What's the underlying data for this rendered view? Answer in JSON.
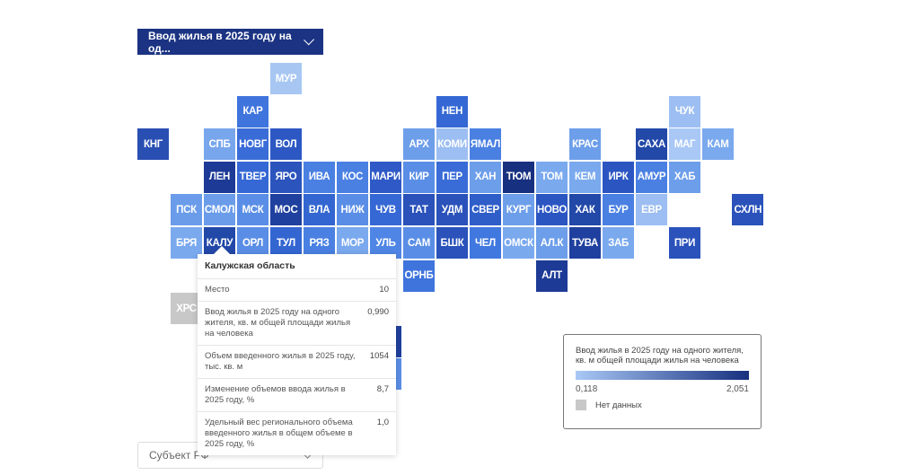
{
  "indicator_dropdown": {
    "label": "Ввод жилья в 2025 году на од...",
    "icon": "chevron-down-icon"
  },
  "subject_dropdown": {
    "placeholder": "Субъект РФ",
    "icon": "chevron-down-icon"
  },
  "chart_data": {
    "type": "heatmap",
    "title": "",
    "scale": {
      "min": 0.118,
      "max": 2.051,
      "color_low": "#a9c8f5",
      "color_high": "#17307f",
      "no_data_color": "#c8c8c8"
    },
    "regions": [
      {
        "abbr": "МУР",
        "color": "#a7c6f2"
      },
      {
        "abbr": "КАР",
        "color": "#3f74dd"
      },
      {
        "abbr": "НЕН",
        "color": "#3568d4"
      },
      {
        "abbr": "ЧУК",
        "color": "#9cbef2"
      },
      {
        "abbr": "КНГ",
        "color": "#2a4fb3"
      },
      {
        "abbr": "СПБ",
        "color": "#78a6ec"
      },
      {
        "abbr": "НОВГ",
        "color": "#3a6cd8"
      },
      {
        "abbr": "ВОЛ",
        "color": "#2d58c4"
      },
      {
        "abbr": "АРХ",
        "color": "#6d9eea"
      },
      {
        "abbr": "КОМИ",
        "color": "#9cbef2"
      },
      {
        "abbr": "ЯМАЛ",
        "color": "#4a80e2"
      },
      {
        "abbr": "КРАС",
        "color": "#6d9eea"
      },
      {
        "abbr": "САХА",
        "color": "#2248a8"
      },
      {
        "abbr": "МАГ",
        "color": "#a9c8f5"
      },
      {
        "abbr": "КАМ",
        "color": "#7aa9ee"
      },
      {
        "abbr": "ЛЕН",
        "color": "#1d3a96"
      },
      {
        "abbr": "ТВЕР",
        "color": "#3568d4"
      },
      {
        "abbr": "ЯРО",
        "color": "#2c54bd"
      },
      {
        "abbr": "ИВА",
        "color": "#4a80e2"
      },
      {
        "abbr": "КОС",
        "color": "#4a80e2"
      },
      {
        "abbr": "МАРИ",
        "color": "#2e59c6"
      },
      {
        "abbr": "КИР",
        "color": "#5a8ee6"
      },
      {
        "abbr": "ПЕР",
        "color": "#3a6cd8"
      },
      {
        "abbr": "ХАН",
        "color": "#6d9eea"
      },
      {
        "abbr": "ТЮМ",
        "color": "#17307f"
      },
      {
        "abbr": "ТОМ",
        "color": "#7aa9ee"
      },
      {
        "abbr": "КЕМ",
        "color": "#7aa9ee"
      },
      {
        "abbr": "ИРК",
        "color": "#2b56c2"
      },
      {
        "abbr": "АМУР",
        "color": "#4a80e2"
      },
      {
        "abbr": "ХАБ",
        "color": "#6d9eea"
      },
      {
        "abbr": "ПСК",
        "color": "#6a9cea"
      },
      {
        "abbr": "СМОЛ",
        "color": "#6a9cea"
      },
      {
        "abbr": "МСК",
        "color": "#5a8ee6"
      },
      {
        "abbr": "МОС",
        "color": "#1f409e"
      },
      {
        "abbr": "ВЛА",
        "color": "#3366d0"
      },
      {
        "abbr": "НИЖ",
        "color": "#5a8ee6"
      },
      {
        "abbr": "ЧУВ",
        "color": "#3568d4"
      },
      {
        "abbr": "ТАТ",
        "color": "#2a52ba"
      },
      {
        "abbr": "УДМ",
        "color": "#2a52ba"
      },
      {
        "abbr": "СВЕР",
        "color": "#2f5ec9"
      },
      {
        "abbr": "КУРГ",
        "color": "#6d9eea"
      },
      {
        "abbr": "НОВО",
        "color": "#2b56c2"
      },
      {
        "abbr": "ХАК",
        "color": "#2248a8"
      },
      {
        "abbr": "БУР",
        "color": "#4a80e2"
      },
      {
        "abbr": "ЕВР",
        "color": "#9cbef2"
      },
      {
        "abbr": "СХЛН",
        "color": "#2a52ba"
      },
      {
        "abbr": "БРЯ",
        "color": "#7aa9ee"
      },
      {
        "abbr": "КАЛУ",
        "color": "#2248a8"
      },
      {
        "abbr": "ОРЛ",
        "color": "#5a8ee6"
      },
      {
        "abbr": "ТУЛ",
        "color": "#3466d2"
      },
      {
        "abbr": "РЯЗ",
        "color": "#4a80e2"
      },
      {
        "abbr": "МОР",
        "color": "#7aa9ee"
      },
      {
        "abbr": "УЛЬ",
        "color": "#4f85e4"
      },
      {
        "abbr": "САМ",
        "color": "#5a8ee6"
      },
      {
        "abbr": "БШК",
        "color": "#2a52ba"
      },
      {
        "abbr": "ЧЕЛ",
        "color": "#4078df"
      },
      {
        "abbr": "ОМСК",
        "color": "#7aa9ee"
      },
      {
        "abbr": "АЛ.К",
        "color": "#6d9eea"
      },
      {
        "abbr": "ТУВА",
        "color": "#1f409e"
      },
      {
        "abbr": "ЗАБ",
        "color": "#7aa9ee"
      },
      {
        "abbr": "ПРИ",
        "color": "#2a52ba"
      },
      {
        "abbr": "ОРНБ",
        "color": "#3f74dd"
      },
      {
        "abbr": "АЛТ",
        "color": "#1d3a96"
      },
      {
        "abbr": "ХРС",
        "color": "#c8c8c8"
      },
      {
        "abbr": "",
        "color": "#1f409e"
      },
      {
        "abbr": "",
        "color": "#5a8ee6"
      }
    ]
  },
  "tooltip": {
    "title": "Калужская область",
    "rows": [
      {
        "label": "Место",
        "value": "10"
      },
      {
        "label": "Ввод жилья в 2025 году на одного жителя, кв. м общей площади жилья на человека",
        "value": "0,990"
      },
      {
        "label": "Объем введенного жилья в 2025 году, тыс. кв. м",
        "value": "1054"
      },
      {
        "label": "Изменение объемов ввода жилья в 2025 году, %",
        "value": "8,7"
      },
      {
        "label": "Удельный вес регионального объема введенного жилья в общем объеме в 2025 году, %",
        "value": "1,0"
      }
    ]
  },
  "legend": {
    "title": "Ввод жилья в 2025 году на одного жителя, кв. м общей площади жилья на человека",
    "min_label": "0,118",
    "max_label": "2,051",
    "no_data_label": "Нет данных"
  }
}
